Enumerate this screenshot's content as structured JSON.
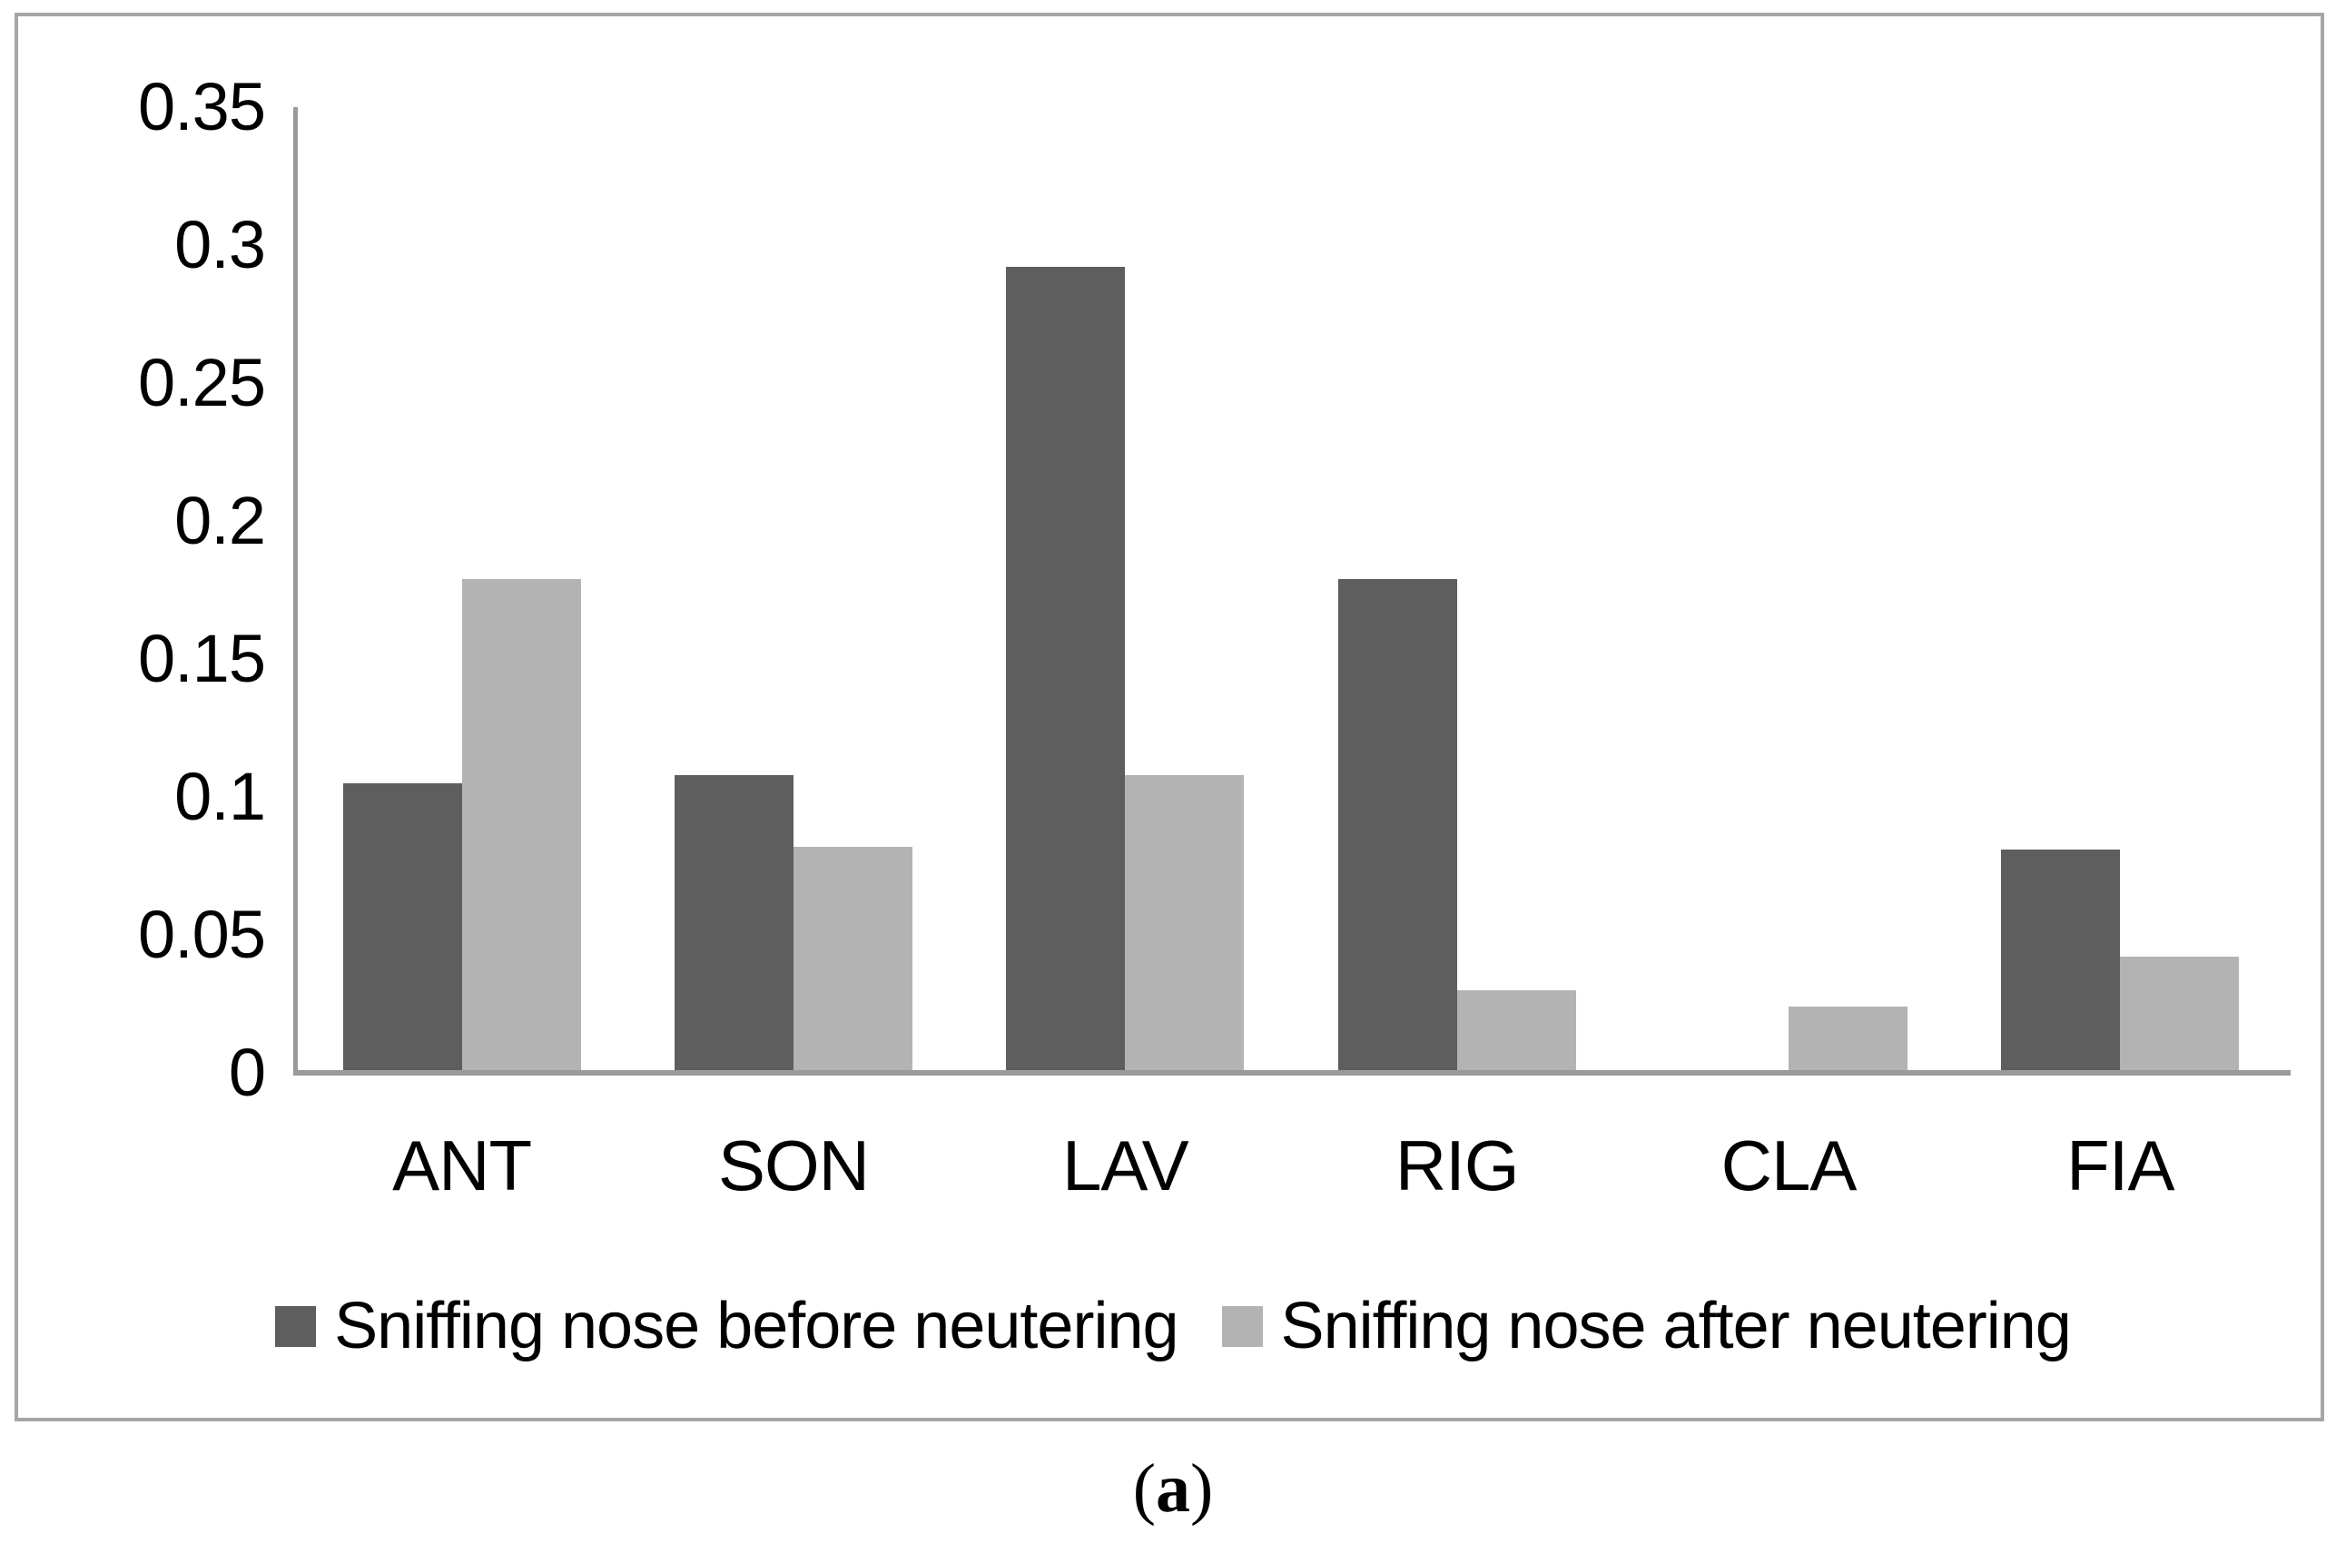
{
  "figure": {
    "caption_open": "(",
    "caption_letter": "a",
    "caption_close": ")"
  },
  "chart_data": {
    "type": "bar",
    "title": "",
    "xlabel": "",
    "ylabel": "",
    "categories": [
      "ANT",
      "SON",
      "LAV",
      "RIG",
      "CLA",
      "FIA"
    ],
    "series": [
      {
        "name": "Sniffing nose before neutering",
        "color": "#5e5e5e",
        "values": [
          0.105,
          0.108,
          0.292,
          0.179,
          0,
          0.081
        ]
      },
      {
        "name": "Sniffing nose after neutering",
        "color": "#b3b3b3",
        "values": [
          0.179,
          0.082,
          0.108,
          0.03,
          0.024,
          0.042
        ]
      }
    ],
    "ylim": [
      0,
      0.35
    ],
    "yticks": [
      0,
      0.05,
      0.1,
      0.15,
      0.2,
      0.25,
      0.3,
      0.35
    ],
    "ytick_labels": [
      "0",
      "0.05",
      "0.1",
      "0.15",
      "0.2",
      "0.25",
      "0.3",
      "0.35"
    ],
    "grid": false,
    "legend_position": "bottom",
    "axis_color": "#9a9a9a",
    "border_color": "#a6a6a6"
  }
}
